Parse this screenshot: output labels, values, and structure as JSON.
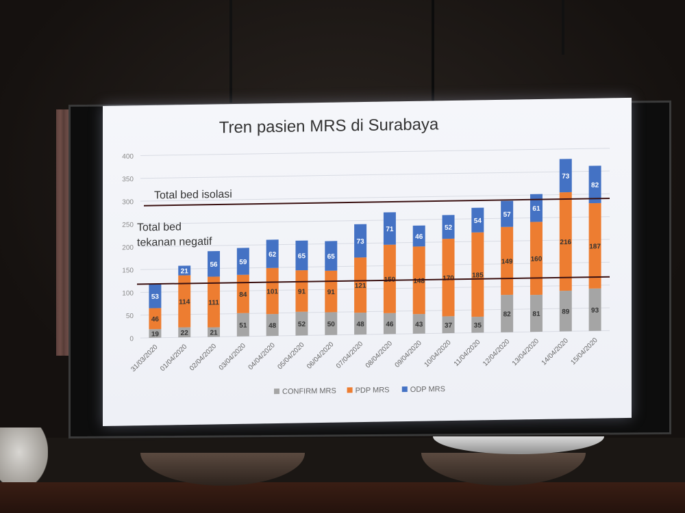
{
  "chart_data": {
    "type": "bar",
    "stacked": true,
    "title": "Tren pasien MRS di Surabaya",
    "xlabel": "",
    "ylabel": "",
    "ylim": [
      0,
      420
    ],
    "yticks": [
      0,
      50,
      100,
      150,
      200,
      250,
      300,
      350,
      400
    ],
    "grid": true,
    "legend_position": "bottom",
    "categories": [
      "31/03/2020",
      "01/04/2020",
      "02/04/2020",
      "03/04/2020",
      "04/04/2020",
      "05/04/2020",
      "06/04/2020",
      "07/04/2020",
      "08/04/2020",
      "09/04/2020",
      "10/04/2020",
      "11/04/2020",
      "12/04/2020",
      "13/04/2020",
      "14/04/2020",
      "15/04/2020"
    ],
    "series": [
      {
        "name": "CONFIRM MRS",
        "color": "#a5a5a5",
        "values": [
          19,
          22,
          21,
          51,
          48,
          52,
          50,
          48,
          46,
          43,
          37,
          35,
          82,
          81,
          89,
          93
        ]
      },
      {
        "name": "PDP MRS",
        "color": "#ed7d31",
        "values": [
          46,
          114,
          111,
          84,
          101,
          91,
          91,
          121,
          150,
          148,
          170,
          185,
          149,
          160,
          216,
          187
        ]
      },
      {
        "name": "ODP MRS",
        "color": "#4472c4",
        "values": [
          53,
          21,
          56,
          59,
          62,
          65,
          65,
          73,
          71,
          46,
          52,
          54,
          57,
          61,
          73,
          82
        ]
      }
    ],
    "annotations": [
      {
        "label": "Total bed isolasi",
        "y": 290
      },
      {
        "label": "Total bed tekanan negatif",
        "label_lines": [
          "Total bed",
          "tekanan negatif"
        ],
        "y": 118
      }
    ]
  }
}
